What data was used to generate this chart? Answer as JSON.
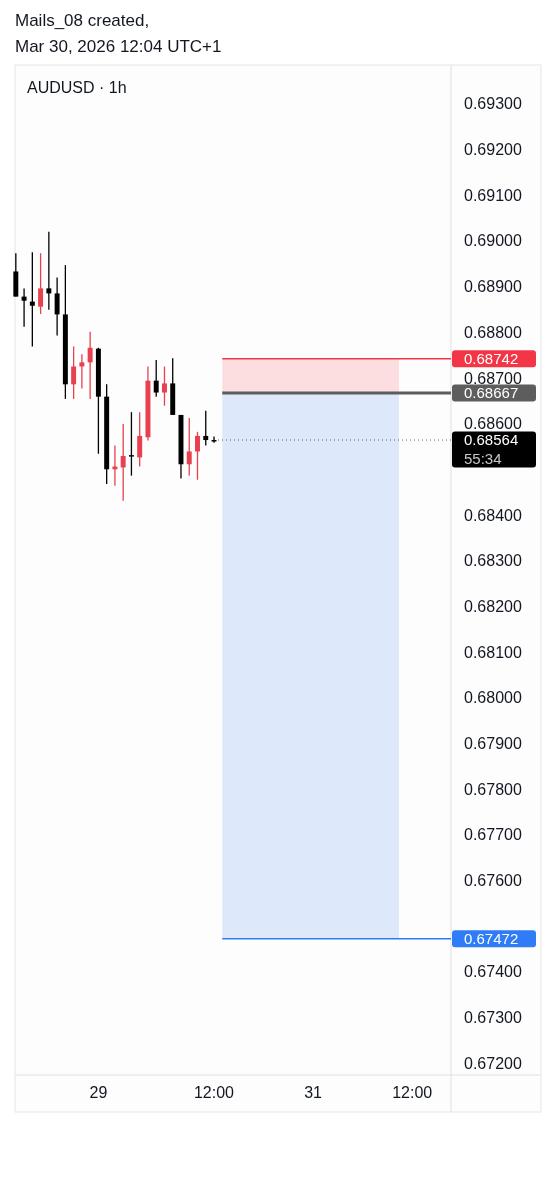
{
  "chart_data": {
    "type": "candlestick",
    "title": "Mails_08 created,",
    "subtitle": "Mar 30, 2026 12:04 UTC+1",
    "annotations": [
      "AUDUSD · 1h"
    ],
    "categories": [
      null,
      null,
      null,
      null,
      null,
      null,
      null,
      null,
      null,
      null,
      "29",
      null,
      null,
      null,
      null,
      null,
      null,
      null,
      null,
      null,
      null,
      null,
      null,
      null,
      "12:00",
      null,
      null,
      null,
      null,
      null,
      null,
      null,
      null,
      null,
      null,
      null,
      "31",
      null,
      null,
      null,
      null,
      null,
      null,
      null,
      null,
      null,
      null,
      null,
      "12:00"
    ],
    "ohlc": [
      [
        0.68933,
        0.68973,
        0.68878,
        0.68878
      ],
      [
        0.68878,
        0.68896,
        0.68812,
        0.68869
      ],
      [
        0.68867,
        0.68975,
        0.68769,
        0.68858
      ],
      [
        0.68856,
        0.68973,
        0.6884,
        0.68896
      ],
      [
        0.68896,
        0.6902,
        0.68849,
        0.68885
      ],
      [
        0.68885,
        0.6892,
        0.68793,
        0.68839
      ],
      [
        0.68839,
        0.68947,
        0.68654,
        0.68686
      ],
      [
        0.68686,
        0.68769,
        0.68654,
        0.68725
      ],
      [
        0.68725,
        0.68752,
        0.68677,
        0.68734
      ],
      [
        0.68734,
        0.68801,
        0.68654,
        0.68766
      ],
      [
        0.68764,
        0.68766,
        0.68534,
        0.68659
      ],
      [
        0.68659,
        0.68686,
        0.68468,
        0.685
      ],
      [
        0.685,
        0.68552,
        0.68464,
        0.68506
      ],
      [
        0.68504,
        0.68599,
        0.68431,
        0.68529
      ],
      [
        0.68531,
        0.68625,
        0.68486,
        0.68528
      ],
      [
        0.68526,
        0.68625,
        0.68506,
        0.68573
      ],
      [
        0.6857,
        0.68725,
        0.68563,
        0.68694
      ],
      [
        0.68694,
        0.68739,
        0.68659,
        0.68668
      ],
      [
        0.68668,
        0.68725,
        0.68639,
        0.68688
      ],
      [
        0.68688,
        0.68743,
        0.68619,
        0.68619
      ],
      [
        0.68619,
        0.68619,
        0.6848,
        0.68511
      ],
      [
        0.68511,
        0.68612,
        0.68486,
        0.68539
      ],
      [
        0.68539,
        0.68582,
        0.68477,
        0.68573
      ],
      [
        0.68573,
        0.68628,
        0.68552,
        0.68564
      ],
      [
        0.68564,
        0.68572,
        0.68558,
        0.68564
      ],
      null,
      null,
      null,
      null,
      null,
      null,
      null,
      null,
      null,
      null,
      null,
      null,
      null,
      null,
      null,
      null,
      null,
      null,
      null,
      null,
      null,
      null,
      null,
      null
    ],
    "colors": [
      "#000000",
      "#000000",
      "#000000",
      "#e8404f",
      "#000000",
      "#000000",
      "#000000",
      "#e8404f",
      "#e8404f",
      "#e8404f",
      "#000000",
      "#000000",
      "#e8404f",
      "#e8404f",
      "#000000",
      "#e8404f",
      "#e8404f",
      "#000000",
      "#e8404f",
      "#000000",
      "#000000",
      "#e8404f",
      "#e8404f",
      "#000000",
      "#000000",
      null,
      null,
      null,
      null,
      null,
      null,
      null,
      null,
      null,
      null,
      null,
      null,
      null,
      null,
      null,
      null,
      null,
      null,
      null,
      null,
      null,
      null,
      null,
      null
    ],
    "ylim": [
      0.67174,
      0.69385
    ],
    "yticks": [
      {
        "value": 0.672,
        "label": "0.67200"
      },
      {
        "value": 0.673,
        "label": "0.67300"
      },
      {
        "value": 0.674,
        "label": "0.67400"
      },
      {
        "value": 0.676,
        "label": "0.67600"
      },
      {
        "value": 0.677,
        "label": "0.67700"
      },
      {
        "value": 0.678,
        "label": "0.67800"
      },
      {
        "value": 0.679,
        "label": "0.67900"
      },
      {
        "value": 0.68,
        "label": "0.68000"
      },
      {
        "value": 0.681,
        "label": "0.68100"
      },
      {
        "value": 0.682,
        "label": "0.68200"
      },
      {
        "value": 0.683,
        "label": "0.68300"
      },
      {
        "value": 0.684,
        "label": "0.68400"
      },
      {
        "value": 0.686,
        "label": "0.68600"
      },
      {
        "value": 0.687,
        "label": "0.68700"
      },
      {
        "value": 0.688,
        "label": "0.68800"
      },
      {
        "value": 0.689,
        "label": "0.68900"
      },
      {
        "value": 0.69,
        "label": "0.69000"
      },
      {
        "value": 0.691,
        "label": "0.69100"
      },
      {
        "value": 0.692,
        "label": "0.69200"
      },
      {
        "value": 0.693,
        "label": "0.69300"
      }
    ],
    "bands": [
      {
        "axis": "y",
        "from": 0.68667,
        "to": 0.68742,
        "color": "#fcdde0"
      },
      {
        "axis": "y",
        "from": 0.67472,
        "to": 0.68667,
        "color": "#dde8fa"
      }
    ],
    "ref_lines": [
      {
        "axis": "y",
        "value": 0.68742,
        "label": "0.68742",
        "color": "#f23645",
        "line_style": "solid"
      },
      {
        "axis": "y",
        "value": 0.68667,
        "label": "0.68667",
        "color": "#5d5d5d",
        "line_style": "solid"
      },
      {
        "axis": "y",
        "value": 0.68564,
        "label": "0.68564\n55:34",
        "color": "#000000",
        "line_style": "dotted"
      },
      {
        "axis": "y",
        "value": 0.67472,
        "label": "0.67472",
        "color": "#2f7cf6",
        "line_style": "solid"
      }
    ],
    "grid": false
  }
}
